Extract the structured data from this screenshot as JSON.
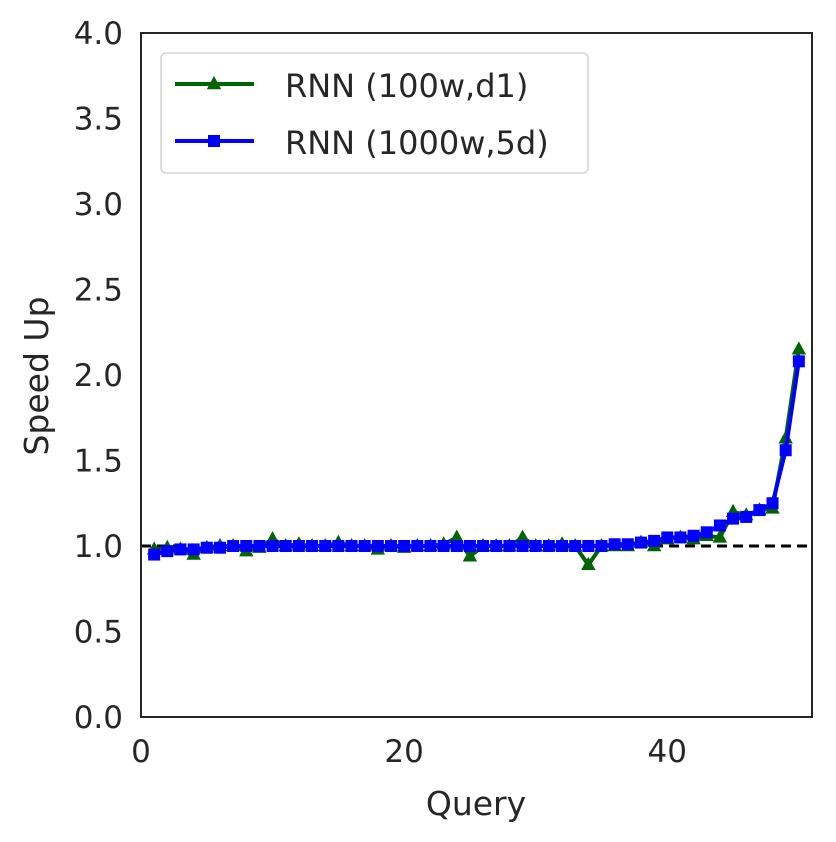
{
  "chart_data": {
    "type": "line",
    "title": "",
    "xlabel": "Query",
    "ylabel": "Speed Up",
    "xlim": [
      0,
      51
    ],
    "ylim": [
      0,
      4.0
    ],
    "x_ticks": [
      0,
      20,
      40
    ],
    "y_ticks": [
      0.0,
      0.5,
      1.0,
      1.5,
      2.0,
      2.5,
      3.0,
      3.5,
      4.0
    ],
    "x_tick_labels": [
      "0",
      "20",
      "40"
    ],
    "y_tick_labels": [
      "0.0",
      "0.5",
      "1.0",
      "1.5",
      "2.0",
      "2.5",
      "3.0",
      "3.5",
      "4.0"
    ],
    "grid": false,
    "legend_position": "top-left",
    "reference_line": {
      "y": 1.0,
      "style": "dashed",
      "color": "#000000"
    },
    "x": [
      1,
      2,
      3,
      4,
      5,
      6,
      7,
      8,
      9,
      10,
      11,
      12,
      13,
      14,
      15,
      16,
      17,
      18,
      19,
      20,
      21,
      22,
      23,
      24,
      25,
      26,
      27,
      28,
      29,
      30,
      31,
      32,
      33,
      34,
      35,
      36,
      37,
      38,
      39,
      40,
      41,
      42,
      43,
      44,
      45,
      46,
      47,
      48,
      49,
      50
    ],
    "series": [
      {
        "name": "RNN (100w,d1)",
        "color": "#006400",
        "marker": "triangle",
        "values": [
          0.98,
          0.99,
          0.98,
          0.95,
          0.99,
          1.0,
          1.0,
          0.97,
          0.99,
          1.04,
          1.0,
          1.01,
          1.0,
          1.0,
          1.02,
          1.0,
          1.0,
          0.98,
          1.0,
          0.99,
          1.0,
          1.0,
          1.01,
          1.05,
          0.94,
          1.0,
          1.0,
          1.0,
          1.05,
          1.0,
          1.0,
          1.01,
          1.0,
          0.89,
          1.0,
          1.0,
          1.0,
          1.02,
          1.0,
          1.04,
          1.05,
          1.04,
          1.06,
          1.05,
          1.2,
          1.18,
          1.21,
          1.22,
          1.63,
          2.15
        ]
      },
      {
        "name": "RNN (1000w,5d)",
        "color": "#0000ff",
        "marker": "square",
        "values": [
          0.95,
          0.97,
          0.98,
          0.98,
          0.99,
          0.99,
          1.0,
          1.0,
          1.0,
          1.0,
          1.0,
          1.0,
          1.0,
          1.0,
          1.0,
          1.0,
          1.0,
          1.0,
          1.0,
          1.0,
          1.0,
          1.0,
          1.0,
          1.0,
          1.0,
          1.0,
          1.0,
          1.0,
          1.0,
          1.0,
          1.0,
          1.0,
          1.0,
          1.0,
          1.0,
          1.01,
          1.01,
          1.02,
          1.03,
          1.05,
          1.05,
          1.06,
          1.08,
          1.12,
          1.16,
          1.17,
          1.21,
          1.25,
          1.56,
          2.08
        ]
      }
    ]
  }
}
